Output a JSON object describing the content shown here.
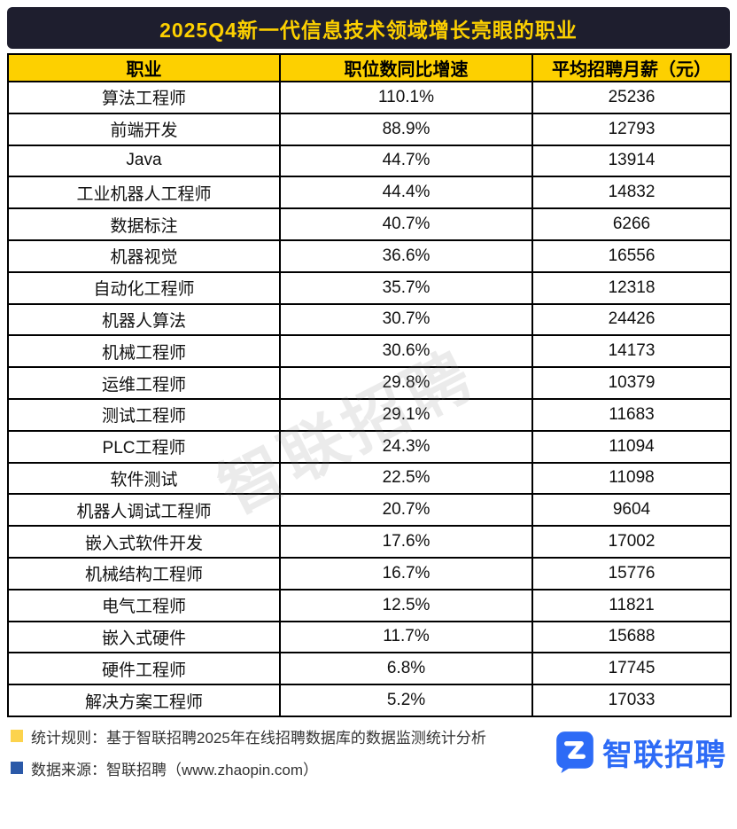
{
  "title": "2025Q4新一代信息技术领域增长亮眼的职业",
  "watermark": "智联招聘",
  "colors": {
    "title_bar_bg": "#1e1e2e",
    "accent_yellow": "#fdd000",
    "logo_blue": "#2d6bf6",
    "note_bullet_yellow": "#fcd34d",
    "note_bullet_blue": "#2b59a8",
    "border_black": "#000000"
  },
  "chart_data": {
    "type": "table",
    "title": "2025Q4新一代信息技术领域增长亮眼的职业",
    "columns": [
      "职业",
      "职位数同比增速",
      "平均招聘月薪（元）"
    ],
    "rows": [
      [
        "算法工程师",
        "110.1%",
        "25236"
      ],
      [
        "前端开发",
        "88.9%",
        "12793"
      ],
      [
        "Java",
        "44.7%",
        "13914"
      ],
      [
        "工业机器人工程师",
        "44.4%",
        "14832"
      ],
      [
        "数据标注",
        "40.7%",
        "6266"
      ],
      [
        "机器视觉",
        "36.6%",
        "16556"
      ],
      [
        "自动化工程师",
        "35.7%",
        "12318"
      ],
      [
        "机器人算法",
        "30.7%",
        "24426"
      ],
      [
        "机械工程师",
        "30.6%",
        "14173"
      ],
      [
        "运维工程师",
        "29.8%",
        "10379"
      ],
      [
        "测试工程师",
        "29.1%",
        "11683"
      ],
      [
        "PLC工程师",
        "24.3%",
        "11094"
      ],
      [
        "软件测试",
        "22.5%",
        "11098"
      ],
      [
        "机器人调试工程师",
        "20.7%",
        "9604"
      ],
      [
        "嵌入式软件开发",
        "17.6%",
        "17002"
      ],
      [
        "机械结构工程师",
        "16.7%",
        "15776"
      ],
      [
        "电气工程师",
        "12.5%",
        "11821"
      ],
      [
        "嵌入式硬件",
        "11.7%",
        "15688"
      ],
      [
        "硬件工程师",
        "6.8%",
        "17745"
      ],
      [
        "解决方案工程师",
        "5.2%",
        "17033"
      ]
    ]
  },
  "footer": {
    "stat_rule": "统计规则：基于智联招聘2025年在线招聘数据库的数据监测统计分析",
    "data_source": "数据来源：智联招聘（www.zhaopin.com）",
    "logo_text": "智联招聘"
  }
}
